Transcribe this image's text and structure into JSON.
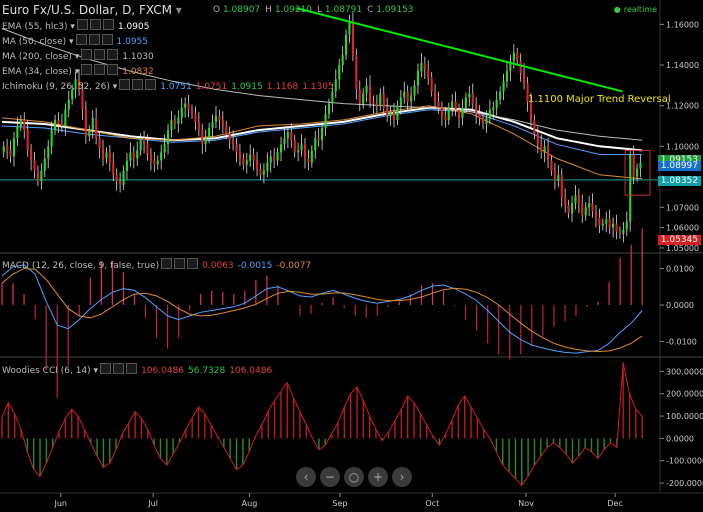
{
  "header": {
    "title": "Euro Fx/U.S. Dollar, D, FXCM",
    "ohlc": [
      {
        "k": "O",
        "v": "1.08907"
      },
      {
        "k": "H",
        "v": "1.09210"
      },
      {
        "k": "L",
        "v": "1.08791"
      },
      {
        "k": "C",
        "v": "1.09153"
      }
    ],
    "realtime": "realtime"
  },
  "indicators": [
    {
      "label": "EMA (55, hlc3)",
      "value": "1.0905",
      "color": "#ffffff"
    },
    {
      "label": "MA (50, close)",
      "value": "1.0955",
      "color": "#4fa3ff"
    },
    {
      "label": "MA (200, close)",
      "value": "1.1030",
      "color": "#bbbbbb"
    },
    {
      "label": "EMA (34, close)",
      "value": "1.0832",
      "color": "#e08a2c"
    },
    {
      "label": "Ichimoku (9, 26, 52, 26)",
      "values": [
        "1.0751",
        "1.0751",
        "1.0915",
        "1.1168",
        "1.1305"
      ],
      "colors": [
        "#4fa3ff",
        "#e04040",
        "#2ecc40",
        "#e04040",
        "#e04040"
      ]
    }
  ],
  "annotation": {
    "text": "1.1100 Major Trend Reversal",
    "color": "#f2e600"
  },
  "price_labels": [
    {
      "text": "1.09153",
      "value": 1.09153,
      "bg": "#1f9e3a"
    },
    {
      "text": "1.08997",
      "value": 1.08997,
      "bg": "#1570c8"
    },
    {
      "text": "1.08352",
      "value": 1.08352,
      "bg": "#0fa0a8"
    },
    {
      "text": "1.05345",
      "value": 1.05345,
      "bg": "#d62020"
    }
  ],
  "macd": {
    "label": "MACD (12, 26, close, 9, false, true)",
    "values": [
      "0.0063",
      "-0.0015",
      "-0.0077"
    ],
    "colors": [
      "#e04040",
      "#4fa3ff",
      "#e08a2c"
    ]
  },
  "cci": {
    "label": "Woodies CCI (6, 14)",
    "values": [
      "106.0486",
      "56.7328",
      "106.0486"
    ],
    "colors": [
      "#e04040",
      "#2ecc40",
      "#e04040"
    ]
  },
  "zoom_controls": [
    "‹",
    "−",
    "○",
    "+",
    "›"
  ],
  "chart_data": [
    {
      "type": "candlestick",
      "title": "Euro Fx/U.S. Dollar, D, FXCM",
      "x_ticks": [
        "Jun",
        "Jul",
        "Aug",
        "Sep",
        "Oct",
        "Nov",
        "Dec"
      ],
      "y_ticks": [
        "1.16000",
        "1.14000",
        "1.12000",
        "1.10000",
        "1.07000",
        "1.06000",
        "1.05000"
      ],
      "ylim": [
        1.048,
        1.172
      ],
      "close": [
        1.1,
        1.098,
        1.095,
        1.104,
        1.11,
        1.113,
        1.108,
        1.098,
        1.093,
        1.088,
        1.083,
        1.088,
        1.094,
        1.1,
        1.108,
        1.113,
        1.111,
        1.11,
        1.118,
        1.123,
        1.128,
        1.133,
        1.128,
        1.118,
        1.105,
        1.108,
        1.114,
        1.104,
        1.099,
        1.094,
        1.097,
        1.092,
        1.086,
        1.083,
        1.081,
        1.088,
        1.093,
        1.097,
        1.094,
        1.098,
        1.104,
        1.101,
        1.096,
        1.093,
        1.091,
        1.093,
        1.097,
        1.101,
        1.108,
        1.113,
        1.111,
        1.114,
        1.119,
        1.121,
        1.118,
        1.116,
        1.112,
        1.108,
        1.101,
        1.104,
        1.109,
        1.112,
        1.115,
        1.113,
        1.11,
        1.106,
        1.103,
        1.101,
        1.097,
        1.094,
        1.091,
        1.093,
        1.096,
        1.093,
        1.089,
        1.086,
        1.088,
        1.092,
        1.095,
        1.093,
        1.097,
        1.101,
        1.104,
        1.107,
        1.103,
        1.097,
        1.098,
        1.101,
        1.094,
        1.092,
        1.098,
        1.104,
        1.103,
        1.109,
        1.116,
        1.121,
        1.127,
        1.133,
        1.14,
        1.145,
        1.155,
        1.161,
        1.145,
        1.128,
        1.121,
        1.126,
        1.13,
        1.122,
        1.121,
        1.12,
        1.126,
        1.119,
        1.115,
        1.117,
        1.113,
        1.12,
        1.124,
        1.127,
        1.122,
        1.125,
        1.13,
        1.137,
        1.141,
        1.138,
        1.134,
        1.127,
        1.122,
        1.119,
        1.115,
        1.113,
        1.119,
        1.122,
        1.118,
        1.114,
        1.119,
        1.124,
        1.126,
        1.121,
        1.116,
        1.114,
        1.111,
        1.114,
        1.118,
        1.119,
        1.123,
        1.127,
        1.132,
        1.137,
        1.142,
        1.146,
        1.142,
        1.136,
        1.131,
        1.122,
        1.113,
        1.106,
        1.101,
        1.097,
        1.1,
        1.093,
        1.088,
        1.083,
        1.086,
        1.075,
        1.071,
        1.067,
        1.072,
        1.076,
        1.072,
        1.066,
        1.07,
        1.072,
        1.068,
        1.065,
        1.061,
        1.062,
        1.064,
        1.06,
        1.062,
        1.058,
        1.057,
        1.059,
        1.063,
        1.096,
        1.085,
        1.089,
        1.092
      ],
      "lines": [
        {
          "name": "EMA (55, hlc3)",
          "color": "#ffffff",
          "values": [
            1.112,
            1.111,
            1.108,
            1.105,
            1.103,
            1.104,
            1.108,
            1.11,
            1.112,
            1.116,
            1.119,
            1.118,
            1.112,
            1.104,
            1.1,
            1.098
          ]
        },
        {
          "name": "MA (50, close)",
          "color": "#4fa3ff",
          "values": [
            1.11,
            1.109,
            1.106,
            1.104,
            1.102,
            1.103,
            1.107,
            1.109,
            1.111,
            1.115,
            1.118,
            1.117,
            1.11,
            1.101,
            1.096,
            1.096
          ]
        },
        {
          "name": "MA (200, close)",
          "color": "#bbbbbb",
          "values": [
            1.158,
            1.15,
            1.143,
            1.137,
            1.132,
            1.128,
            1.125,
            1.123,
            1.121,
            1.12,
            1.119,
            1.117,
            1.113,
            1.108,
            1.105,
            1.103
          ]
        },
        {
          "name": "EMA (34, close)",
          "color": "#e08a2c",
          "values": [
            1.114,
            1.112,
            1.108,
            1.104,
            1.103,
            1.105,
            1.11,
            1.111,
            1.113,
            1.117,
            1.12,
            1.116,
            1.106,
            1.094,
            1.086,
            1.084
          ]
        }
      ],
      "trend_line": {
        "from": [
          0.449,
          1.168
        ],
        "to": [
          0.943,
          1.127
        ],
        "color": "#00ee00"
      },
      "horizontal_line": {
        "value": 1.0835,
        "color": "#0fa0a8"
      }
    },
    {
      "type": "line",
      "title": "MACD (12, 26, close, 9, false, true)",
      "y_ticks": [
        "0.0100",
        "0.0000",
        "-0.0100"
      ],
      "ylim": [
        -0.014,
        0.014
      ],
      "series": [
        {
          "name": "MACD",
          "color": "#4fa3ff",
          "values": [
            0.008,
            0.0105,
            0.011,
            0.0085,
            0.001,
            -0.0055,
            -0.0065,
            -0.004,
            -0.001,
            0.0015,
            0.0035,
            0.0045,
            0.004,
            0.002,
            -0.0005,
            -0.003,
            -0.004,
            -0.003,
            -0.002,
            -0.0015,
            -0.001,
            -0.0005,
            0.0005,
            0.0025,
            0.0045,
            0.005,
            0.0038,
            0.0025,
            0.0022,
            0.0032,
            0.004,
            0.003,
            0.0018,
            0.001,
            0.0005,
            0.001,
            0.0015,
            0.0025,
            0.004,
            0.0052,
            0.0055,
            0.0045,
            0.003,
            0.0012,
            -0.0015,
            -0.0045,
            -0.0075,
            -0.0095,
            -0.011,
            -0.0118,
            -0.0125,
            -0.013,
            -0.0132,
            -0.0128,
            -0.0125,
            -0.0105,
            -0.0075,
            -0.005,
            -0.0015
          ]
        },
        {
          "name": "Signal",
          "color": "#e08a2c",
          "values": [
            0.006,
            0.0085,
            0.01,
            0.0098,
            0.007,
            0.003,
            -0.001,
            -0.003,
            -0.0035,
            -0.0025,
            -0.0005,
            0.0015,
            0.003,
            0.0032,
            0.0025,
            0.001,
            -0.001,
            -0.0025,
            -0.003,
            -0.0028,
            -0.0022,
            -0.0015,
            -0.0008,
            0.0002,
            0.0018,
            0.0032,
            0.0038,
            0.0035,
            0.003,
            0.003,
            0.0033,
            0.0033,
            0.0028,
            0.0022,
            0.0015,
            0.0012,
            0.0012,
            0.0015,
            0.0022,
            0.0032,
            0.0042,
            0.0046,
            0.0043,
            0.0035,
            0.002,
            0.0,
            -0.0025,
            -0.005,
            -0.0072,
            -0.009,
            -0.0105,
            -0.0115,
            -0.0122,
            -0.0126,
            -0.0128,
            -0.0126,
            -0.0118,
            -0.0105,
            -0.0085
          ]
        }
      ]
    },
    {
      "type": "bar",
      "title": "Woodies CCI (6, 14)",
      "y_ticks": [
        "300.0000",
        "200.0000",
        "100.0000",
        "0.0000",
        "-100.0000",
        "-200.0000"
      ],
      "ylim": [
        -240,
        360
      ],
      "values": [
        95,
        160,
        110,
        40,
        -60,
        -140,
        -170,
        -110,
        -40,
        30,
        90,
        130,
        100,
        40,
        -20,
        -80,
        -130,
        -110,
        -50,
        20,
        70,
        120,
        90,
        40,
        -30,
        -90,
        -120,
        -70,
        -20,
        40,
        90,
        140,
        110,
        60,
        10,
        -40,
        -90,
        -140,
        -120,
        -60,
        10,
        60,
        120,
        170,
        210,
        250,
        180,
        120,
        60,
        0,
        -50,
        -30,
        20,
        70,
        140,
        200,
        230,
        170,
        100,
        40,
        -10,
        30,
        80,
        130,
        190,
        160,
        110,
        60,
        10,
        -30,
        20,
        80,
        150,
        190,
        140,
        90,
        40,
        0,
        -60,
        -120,
        -150,
        -180,
        -210,
        -170,
        -120,
        -80,
        -40,
        -20,
        -40,
        -70,
        -110,
        -80,
        -40,
        -60,
        -90,
        -50,
        -20,
        -40,
        340,
        200,
        130,
        100
      ]
    }
  ]
}
